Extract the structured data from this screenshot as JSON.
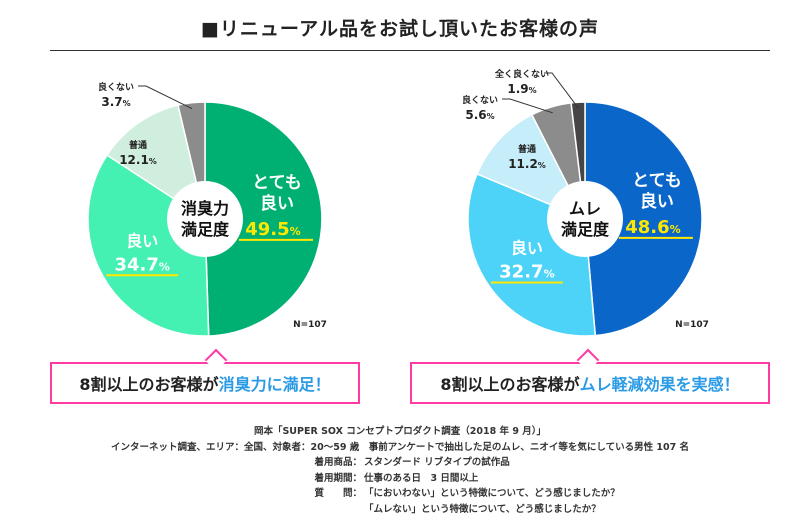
{
  "title": "■リニューアル品をお試し頂いたお客様の声",
  "chart_data": [
    {
      "type": "pie",
      "center_label": [
        "消臭力",
        "満足度"
      ],
      "n_label": "N=107",
      "slices": [
        {
          "name": "とても良い",
          "label": [
            "とても",
            "良い"
          ],
          "value": 49.5,
          "color": "#00b072",
          "label_color": "#ffffff",
          "value_color": "#ffe800"
        },
        {
          "name": "良い",
          "label": [
            "良い"
          ],
          "value": 34.7,
          "color": "#44f0b2",
          "label_color": "#ffffff",
          "value_color": "#ffffff"
        },
        {
          "name": "普通",
          "label": [
            "普通"
          ],
          "value": 12.1,
          "color": "#cfeedd",
          "label_color": "#222222",
          "value_color": "#222222"
        },
        {
          "name": "良くない",
          "label": [
            "良くない"
          ],
          "value": 3.7,
          "color": "#8c8c8c",
          "label_color": "#222222",
          "value_color": "#222222"
        }
      ]
    },
    {
      "type": "pie",
      "center_label": [
        "ムレ",
        "満足度"
      ],
      "n_label": "N=107",
      "slices": [
        {
          "name": "とても良い",
          "label": [
            "とても",
            "良い"
          ],
          "value": 48.6,
          "color": "#0a66c8",
          "label_color": "#ffffff",
          "value_color": "#ffe800"
        },
        {
          "name": "良い",
          "label": [
            "良い"
          ],
          "value": 32.7,
          "color": "#4dd3f7",
          "label_color": "#ffffff",
          "value_color": "#ffffff"
        },
        {
          "name": "普通",
          "label": [
            "普通"
          ],
          "value": 11.2,
          "color": "#c6eefa",
          "label_color": "#222222",
          "value_color": "#222222"
        },
        {
          "name": "良くない",
          "label": [
            "良くない"
          ],
          "value": 5.6,
          "color": "#8c8c8c",
          "label_color": "#222222",
          "value_color": "#222222"
        },
        {
          "name": "全く良くない",
          "label": [
            "全く良くない"
          ],
          "value": 1.9,
          "color": "#454545",
          "label_color": "#222222",
          "value_color": "#222222"
        }
      ]
    }
  ],
  "callouts": [
    {
      "prefix": "8割以上のお客様が",
      "highlight": "消臭力に満足！"
    },
    {
      "prefix": "8割以上のお客様が",
      "highlight": "ムレ軽減効果を実感！"
    }
  ],
  "footnote": {
    "source": "岡本「SUPER SOX コンセプトプロダクト調査（2018 年 9 月）」",
    "method": "インターネット調査、エリア：全国、対象者：20〜59 歳　事前アンケートで抽出した足のムレ、ニオイ等を気にしている男性 107 名",
    "rows": [
      {
        "label": "着用商品：",
        "value": "スタンダード リブタイプの試作品"
      },
      {
        "label": "着用期間：",
        "value": "仕事のある日　3 日間以上"
      },
      {
        "label": "質　　問：",
        "value": "「においわない」という特徴について、どう感じましたか？"
      },
      {
        "label": "",
        "value": "「ムレない」という特徴について、どう感じましたか？"
      }
    ]
  }
}
